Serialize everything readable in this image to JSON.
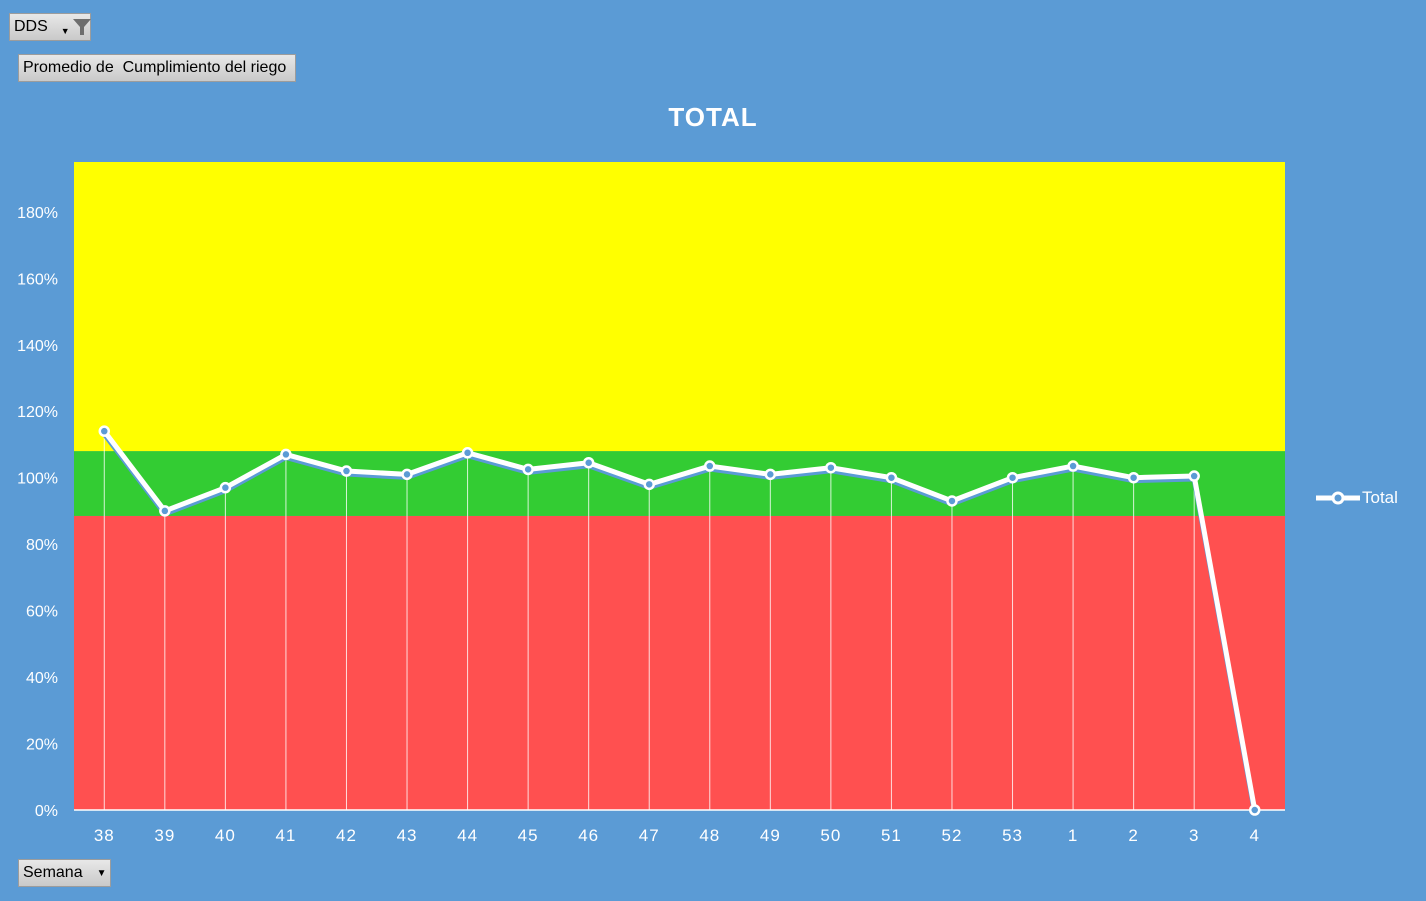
{
  "filters": {
    "report_filter_label": "DDS",
    "value_field_label": "Promedio de  Cumplimiento del riego",
    "axis_field_label": "Semana"
  },
  "colors": {
    "background": "#5B9BD5",
    "band_high": "#FFFF00",
    "band_mid": "#33CC33",
    "band_low": "#FF5050",
    "line": "#FFFFFF"
  },
  "chart_data": {
    "type": "line",
    "title": "TOTAL",
    "categories": [
      "38",
      "39",
      "40",
      "41",
      "42",
      "43",
      "44",
      "45",
      "46",
      "47",
      "48",
      "49",
      "50",
      "51",
      "52",
      "53",
      "1",
      "2",
      "3",
      "4"
    ],
    "series": [
      {
        "name": "Total",
        "values": [
          1.14,
          0.9,
          0.97,
          1.07,
          1.02,
          1.01,
          1.075,
          1.025,
          1.045,
          0.98,
          1.035,
          1.01,
          1.03,
          1.0,
          0.93,
          1.0,
          1.035,
          1.0,
          1.005,
          0.0
        ]
      }
    ],
    "bands": [
      {
        "from": 0.0,
        "to": 0.885,
        "color": "#FF5050"
      },
      {
        "from": 0.885,
        "to": 1.08,
        "color": "#33CC33"
      },
      {
        "from": 1.08,
        "to": 1.95,
        "color": "#FFFF00"
      }
    ],
    "ylim": [
      0,
      1.95
    ],
    "yticks": [
      "0%",
      "20%",
      "40%",
      "60%",
      "80%",
      "100%",
      "120%",
      "140%",
      "160%",
      "180%"
    ],
    "legend_position": "right",
    "xlabel": "",
    "ylabel": ""
  }
}
